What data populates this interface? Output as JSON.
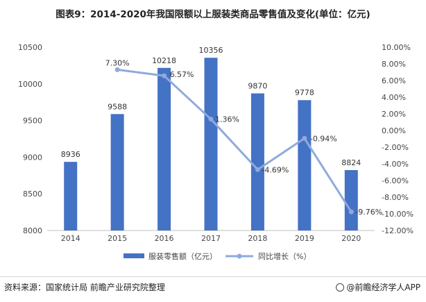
{
  "chart_data": {
    "type": "bar+line",
    "title": "图表9：2014-2020年我国限额以上服装类商品零售值及变化(单位：亿元)",
    "categories": [
      "2014",
      "2015",
      "2016",
      "2017",
      "2018",
      "2019",
      "2020"
    ],
    "series": [
      {
        "name": "服装零售额（亿元）",
        "type": "bar",
        "axis": "left",
        "color": "#4472C4",
        "values": [
          8936,
          9588,
          10218,
          10356,
          9870,
          9778,
          8824
        ],
        "labels": [
          "8936",
          "9588",
          "10218",
          "10356",
          "9870",
          "9778",
          "8824"
        ]
      },
      {
        "name": "同比增长（%）",
        "type": "line",
        "axis": "right",
        "color": "#8FAADC",
        "values": [
          null,
          7.3,
          6.57,
          1.36,
          -4.69,
          -0.94,
          -9.76
        ],
        "labels": [
          "",
          "7.30%",
          "6.57%",
          "1.36%",
          "-4.69%",
          "-0.94%",
          "-9.76%"
        ]
      }
    ],
    "y_left": {
      "min": 8000,
      "max": 10500,
      "ticks": [
        8000,
        8500,
        9000,
        9500,
        10000,
        10500
      ],
      "tick_labels": [
        "8000",
        "8500",
        "9000",
        "9500",
        "10000",
        "10500"
      ]
    },
    "y_right": {
      "min": -12,
      "max": 10,
      "ticks": [
        10,
        8,
        6,
        4,
        2,
        0,
        -2,
        -4,
        -6,
        -8,
        -10,
        -12
      ],
      "tick_labels": [
        "10.00%",
        "8.00%",
        "6.00%",
        "4.00%",
        "2.00%",
        "0.00%",
        "-2.00%",
        "-4.00%",
        "-6.00%",
        "-8.00%",
        "-10.00%",
        "-12.00%"
      ]
    },
    "legend_position": "bottom",
    "grid": false
  },
  "footer": {
    "source": "资料来源：国家统计局 前瞻产业研究院整理",
    "brand": "@前瞻经济学人APP"
  }
}
